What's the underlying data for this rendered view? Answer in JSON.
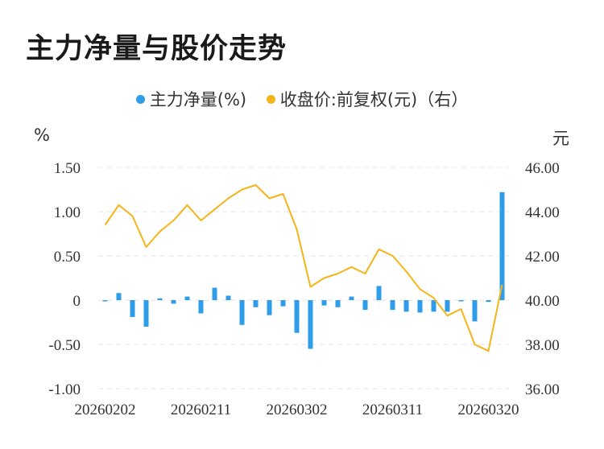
{
  "title": "主力净量与股价走势",
  "legend": [
    {
      "label": "主力净量(%)",
      "color": "#2e9ce8"
    },
    {
      "label": "收盘价:前复权(元)（右）",
      "color": "#f5b51a"
    }
  ],
  "chart_data": {
    "type": "bar+line",
    "y_left_unit": "%",
    "y_right_unit": "元",
    "y_left_ticks": [
      "1.50",
      "1.00",
      "0.50",
      "0",
      "-0.50",
      "-1.00"
    ],
    "y_right_ticks": [
      "46.00",
      "44.00",
      "42.00",
      "40.00",
      "38.00",
      "36.00"
    ],
    "ylim_left": [
      -1.0,
      1.5
    ],
    "ylim_right": [
      36.0,
      46.0
    ],
    "x_tick_labels": [
      "20260202",
      "20260211",
      "20260302",
      "20260311",
      "20260320"
    ],
    "x_tick_indices": [
      0,
      7,
      14,
      21,
      28
    ],
    "grid": true,
    "series": [
      {
        "name": "主力净量(%)",
        "type": "bar",
        "axis": "left",
        "color": "#2e9ce8",
        "values": [
          -0.01,
          0.08,
          -0.19,
          -0.3,
          0.02,
          -0.04,
          0.04,
          -0.15,
          0.14,
          0.05,
          -0.28,
          -0.08,
          -0.17,
          -0.07,
          -0.37,
          -0.55,
          -0.06,
          -0.08,
          0.04,
          -0.11,
          0.16,
          -0.11,
          -0.13,
          -0.14,
          -0.13,
          -0.13,
          -0.01,
          -0.24,
          -0.02,
          1.22
        ]
      },
      {
        "name": "收盘价:前复权(元)（右）",
        "type": "line",
        "axis": "right",
        "color": "#f5b51a",
        "values": [
          43.4,
          44.3,
          43.8,
          42.4,
          43.1,
          43.6,
          44.3,
          43.6,
          44.1,
          44.6,
          45.0,
          45.2,
          44.6,
          44.8,
          43.2,
          40.6,
          41.0,
          41.2,
          41.5,
          41.2,
          42.3,
          42.0,
          41.3,
          40.5,
          40.1,
          39.3,
          39.6,
          38.0,
          37.7,
          40.7
        ]
      }
    ]
  }
}
